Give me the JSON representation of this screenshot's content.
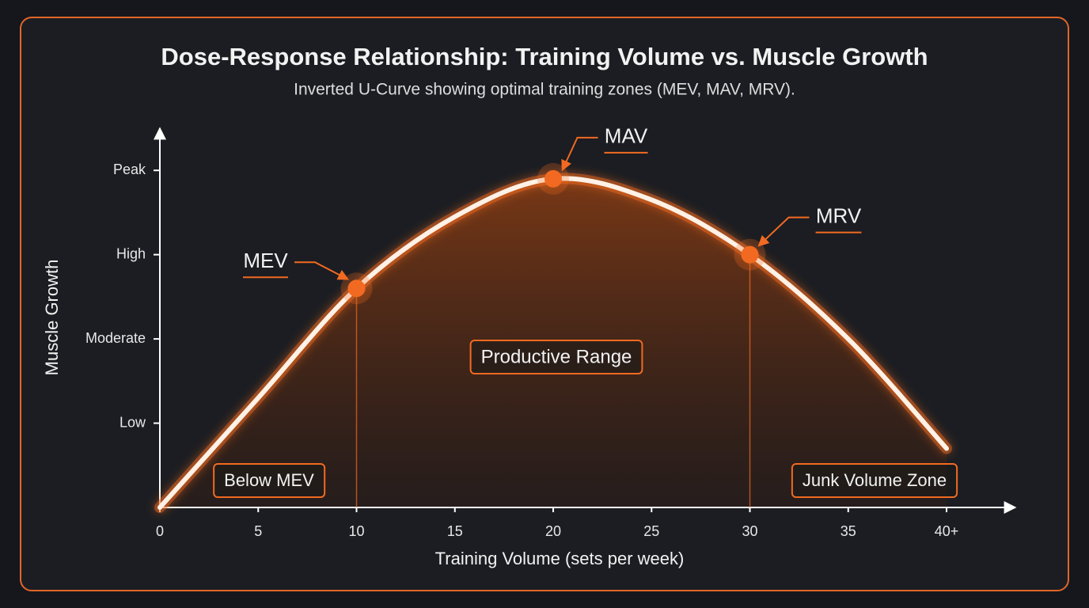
{
  "chart_data": {
    "type": "line",
    "title": "Dose-Response Relationship: Training Volume vs. Muscle Growth",
    "subtitle": "Inverted U-Curve showing optimal training zones (MEV, MAV, MRV).",
    "x_label": "Training Volume (sets per week)",
    "y_label": "Muscle Growth",
    "x": [
      0,
      5,
      10,
      15,
      20,
      25,
      30,
      35,
      40
    ],
    "values": [
      0,
      1.3,
      2.6,
      3.45,
      3.9,
      3.65,
      3.0,
      2.0,
      0.7
    ],
    "color": "#fff1e6",
    "accent_color": "#f26a21",
    "xlim": [
      0,
      43.5
    ],
    "xticks": [
      0,
      5,
      10,
      15,
      20,
      25,
      30,
      35,
      {
        "value": 40,
        "label": "40+"
      }
    ],
    "ylim": [
      0,
      4.5
    ],
    "yticks": [
      {
        "value": 1,
        "label": "Low"
      },
      {
        "value": 2,
        "label": "Moderate"
      },
      {
        "value": 3,
        "label": "High"
      },
      {
        "value": 4,
        "label": "Peak"
      }
    ],
    "markers": {
      "names": [
        "MEV",
        "MAV",
        "MRV"
      ],
      "x": [
        10,
        20,
        30
      ],
      "values": [
        2.6,
        3.9,
        3.0
      ]
    },
    "zones": [
      "Below MEV",
      "Productive Range",
      "Junk Volume Zone"
    ]
  }
}
